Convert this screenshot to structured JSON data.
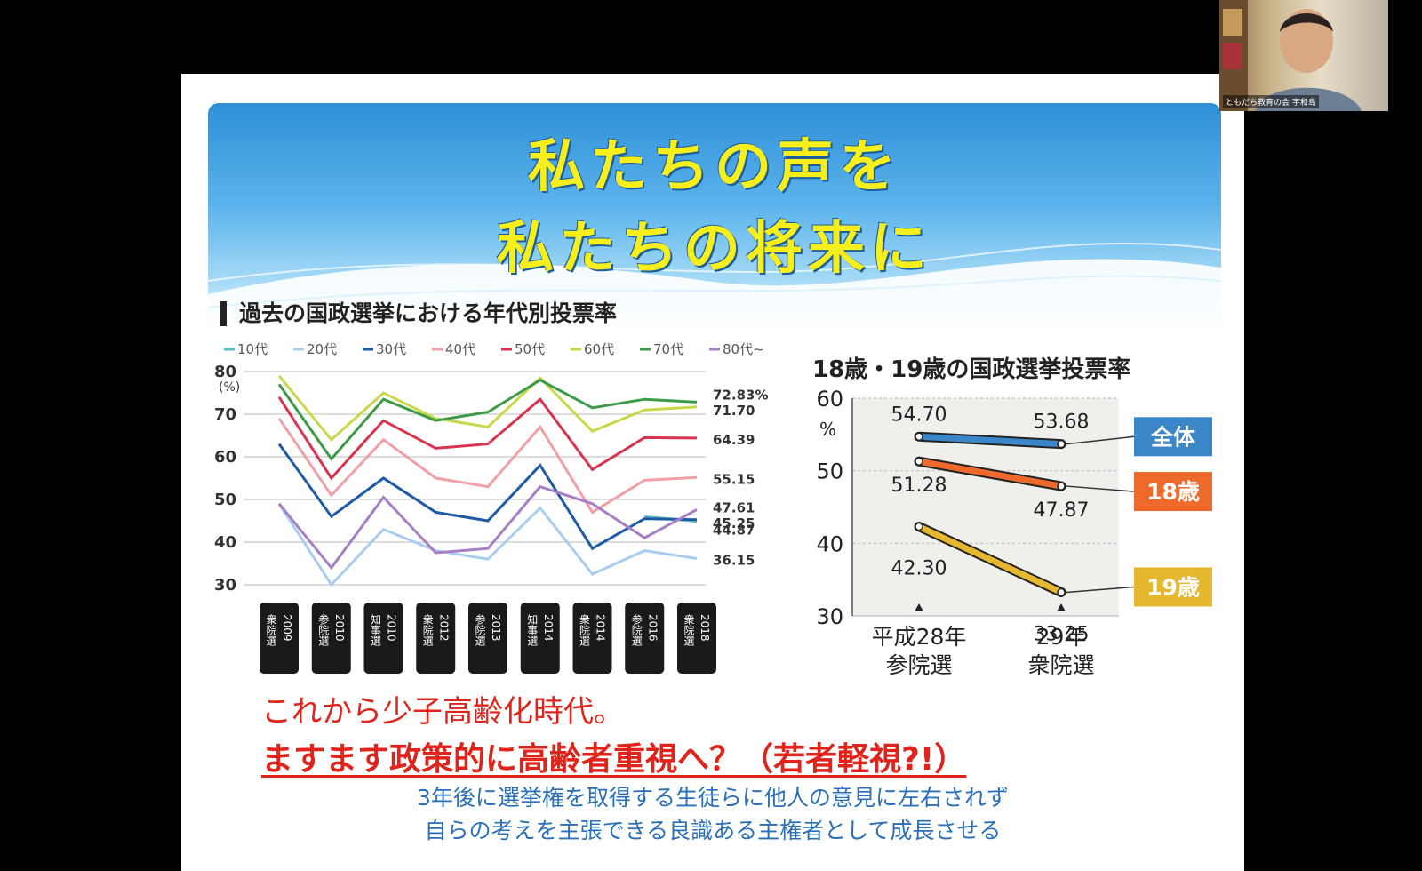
{
  "slide": {
    "title_line1": "私たちの声を",
    "title_line2": "私たちの将来に",
    "left_chart_title": "過去の国政選挙における年代別投票率",
    "right_chart_title": "18歳・19歳の国政選挙投票率",
    "bottom_line1": "これから少子高齢化時代。",
    "bottom_line2": "ますます政策的に高齢者重視へ？（若者軽視?!）",
    "bottom_line3": "3年後に選挙権を取得する生徒らに他人の意見に左右されず",
    "bottom_line4": "自らの考えを主張できる良識ある主権者として成長させる"
  },
  "webcam": {
    "name_tag": "ともだち教育の会 宇和島"
  },
  "chart_data": [
    {
      "type": "line",
      "title": "過去の国政選挙における年代別投票率",
      "ylabel": "(%)",
      "ylim": [
        30,
        80
      ],
      "yticks": [
        30,
        40,
        50,
        60,
        70,
        80
      ],
      "categories": [
        "衆院選2009",
        "参院選2010",
        "知事選2010",
        "衆院選2012",
        "参院選2013",
        "知事選2014",
        "衆院選2014",
        "参院選2016",
        "衆院選2018"
      ],
      "category_labels": [
        {
          "kind": "衆院選",
          "year": "2009"
        },
        {
          "kind": "参院選",
          "year": "2010"
        },
        {
          "kind": "知事選",
          "year": "2010"
        },
        {
          "kind": "衆院選",
          "year": "2012"
        },
        {
          "kind": "参院選",
          "year": "2013"
        },
        {
          "kind": "知事選",
          "year": "2014"
        },
        {
          "kind": "衆院選",
          "year": "2014"
        },
        {
          "kind": "参院選",
          "year": "2016"
        },
        {
          "kind": "衆院選",
          "year": "2018"
        }
      ],
      "legend_position": "top",
      "series": [
        {
          "name": "10代",
          "color": "#5bbfc4",
          "values": [
            null,
            null,
            null,
            null,
            null,
            null,
            null,
            46,
            44.87
          ]
        },
        {
          "name": "20代",
          "color": "#a9cdf0",
          "values": [
            49,
            30,
            43,
            38,
            36,
            48,
            32.5,
            38,
            36.15
          ]
        },
        {
          "name": "30代",
          "color": "#1f5aa6",
          "values": [
            63,
            46,
            55,
            47,
            45,
            58,
            38.5,
            45.5,
            45.25
          ]
        },
        {
          "name": "40代",
          "color": "#f0a0a6",
          "values": [
            69,
            51,
            64,
            55,
            53,
            67,
            47,
            54.5,
            55.15
          ]
        },
        {
          "name": "50代",
          "color": "#d8334f",
          "values": [
            74,
            55,
            68.5,
            62,
            63,
            73.5,
            57,
            64.5,
            64.39
          ]
        },
        {
          "name": "60代",
          "color": "#c9d84a",
          "values": [
            79,
            64,
            75,
            69,
            67,
            78.5,
            66,
            71,
            71.7
          ]
        },
        {
          "name": "70代",
          "color": "#3d9b47",
          "values": [
            77,
            59.5,
            73.5,
            68.5,
            70.5,
            78,
            71.5,
            73.5,
            72.83
          ]
        },
        {
          "name": "80代~",
          "color": "#a67fc4",
          "values": [
            49,
            34,
            50.5,
            37.5,
            38.5,
            53,
            49,
            41,
            47.61
          ]
        }
      ],
      "end_labels": [
        "72.83%",
        "71.70",
        "64.39",
        "55.15",
        "47.61",
        "45.25",
        "44.87",
        "36.15"
      ]
    },
    {
      "type": "line",
      "title": "18歳・19歳の国政選挙投票率",
      "ylabel": "%",
      "ylim": [
        30,
        60
      ],
      "yticks": [
        30,
        40,
        50,
        60
      ],
      "categories": [
        "平成28年 参院選",
        "29年 衆院選"
      ],
      "category_labels": [
        {
          "line1": "平成28年",
          "line2": "参院選"
        },
        {
          "line1": "29年",
          "line2": "衆院選"
        }
      ],
      "series": [
        {
          "name": "全体",
          "color": "#3b86c9",
          "values": [
            54.7,
            53.68
          ],
          "labels": [
            "54.70",
            "53.68"
          ]
        },
        {
          "name": "18歳",
          "color": "#ee6a2c",
          "values": [
            51.28,
            47.87
          ],
          "labels": [
            "51.28",
            "47.87"
          ]
        },
        {
          "name": "19歳",
          "color": "#e6b830",
          "values": [
            42.3,
            33.25
          ],
          "labels": [
            "42.30",
            "33.25"
          ]
        }
      ]
    }
  ]
}
